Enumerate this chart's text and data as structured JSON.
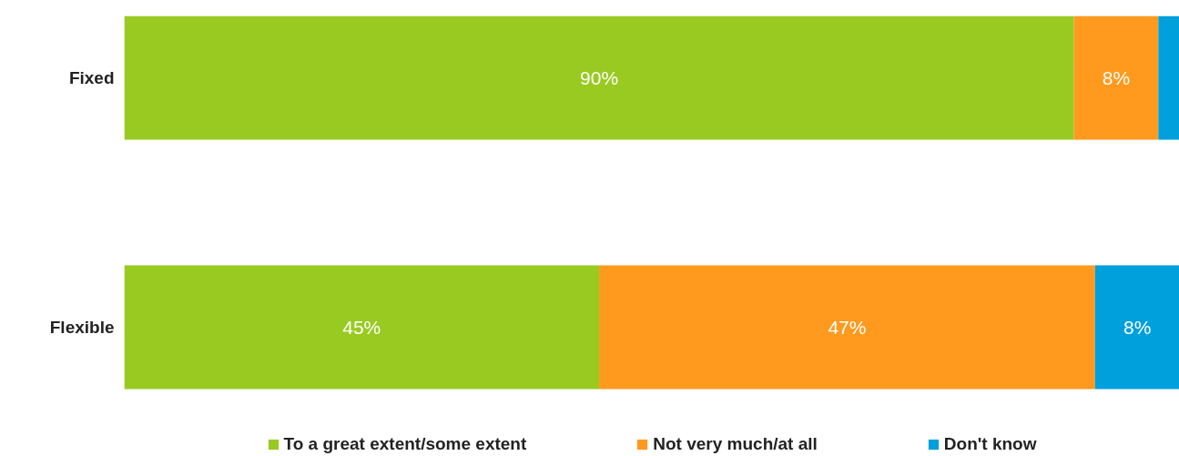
{
  "chart_data": {
    "type": "bar",
    "orientation": "horizontal",
    "stacked": true,
    "categories": [
      "Fixed",
      "Flexible"
    ],
    "series": [
      {
        "name": "To a great extent/some extent",
        "color": "#99ca22",
        "values": [
          90,
          45
        ],
        "value_labels": [
          "90%",
          "45%"
        ]
      },
      {
        "name": "Not very much/at all",
        "color": "#ff9a1e",
        "values": [
          8,
          47
        ],
        "value_labels": [
          "8%",
          "47%"
        ]
      },
      {
        "name": "Don't know",
        "color": "#00a0dc",
        "values": [
          2,
          8
        ],
        "value_labels": [
          null,
          "8%"
        ]
      }
    ],
    "xlim": [
      0,
      100
    ],
    "tick_labels": "y",
    "grid": false,
    "legend": "bottom"
  }
}
